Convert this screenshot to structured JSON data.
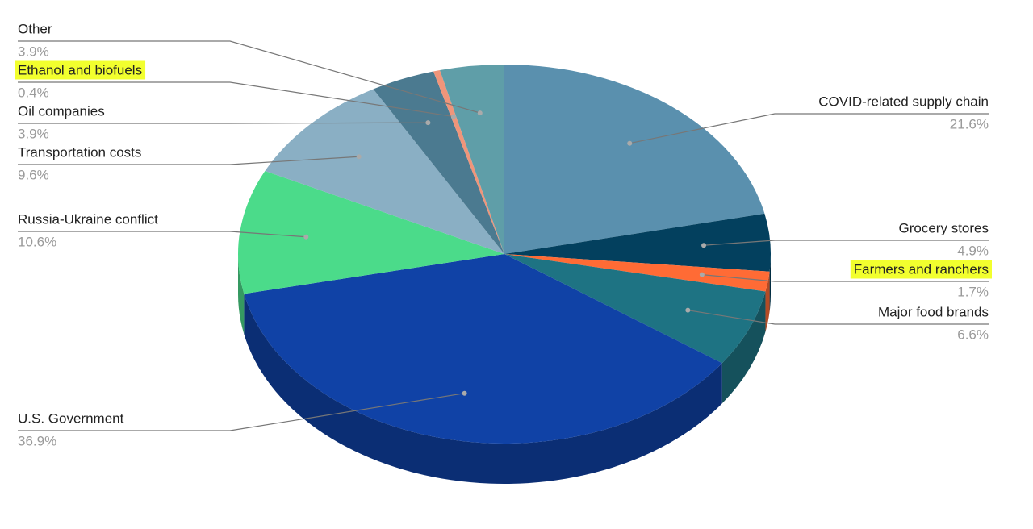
{
  "chart_data": {
    "type": "pie3d",
    "categories": [
      "COVID-related supply chain",
      "Grocery stores",
      "Farmers and ranchers",
      "Major food brands",
      "U.S. Government",
      "Russia-Ukraine conflict",
      "Transportation costs",
      "Oil companies",
      "Ethanol and biofuels",
      "Other"
    ],
    "values": [
      21.6,
      4.9,
      1.7,
      6.6,
      36.9,
      10.6,
      9.6,
      3.9,
      0.4,
      3.9
    ],
    "value_labels": [
      "21.6%",
      "4.9%",
      "1.7%",
      "6.6%",
      "36.9%",
      "10.6%",
      "9.6%",
      "3.9%",
      "0.4%",
      "3.9%"
    ],
    "colors": [
      "#5a90ae",
      "#03405e",
      "#ff6b35",
      "#1e7383",
      "#1042a6",
      "#4bdb8a",
      "#8aafc4",
      "#4b7a90",
      "#f0957a",
      "#5f9ea8"
    ],
    "highlighted": [
      false,
      false,
      true,
      false,
      false,
      false,
      false,
      false,
      true,
      false
    ],
    "highlight_color": "#f2ff2e"
  }
}
